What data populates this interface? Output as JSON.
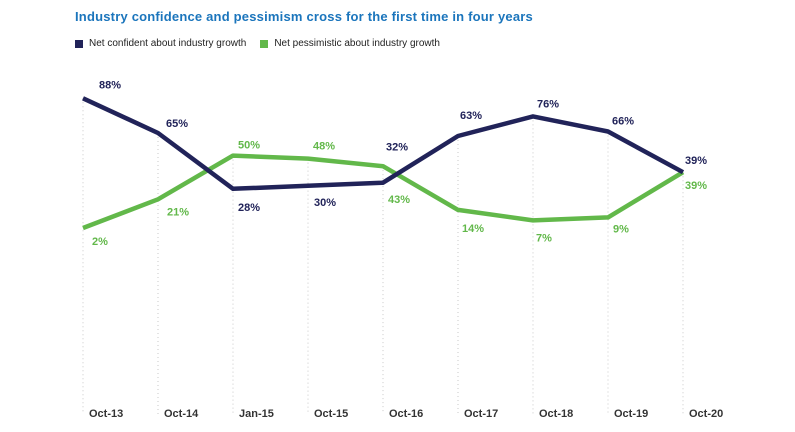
{
  "chart_data": {
    "type": "line",
    "title": "Industry confidence and pessimism cross for the first time in four years",
    "categories": [
      "Oct-13",
      "Oct-14",
      "Jan-15",
      "Oct-15",
      "Oct-16",
      "Oct-17",
      "Oct-18",
      "Oct-19",
      "Oct-20"
    ],
    "series": [
      {
        "name": "Net confident about industry growth",
        "color": "#212359",
        "values": [
          88,
          65,
          28,
          30,
          32,
          63,
          76,
          66,
          39
        ],
        "labels": [
          "88%",
          "65%",
          "28%",
          "30%",
          "32%",
          "63%",
          "76%",
          "66%",
          "39%"
        ],
        "label_dx": [
          16,
          8,
          5,
          6,
          3,
          2,
          4,
          4,
          2
        ],
        "label_dy": [
          -10,
          -6,
          22,
          20,
          -32,
          -17,
          -9,
          -7,
          -8
        ]
      },
      {
        "name": "Net pessimistic about industry growth",
        "color": "#62b84a",
        "values": [
          2,
          21,
          50,
          48,
          43,
          14,
          7,
          9,
          39
        ],
        "labels": [
          "2%",
          "21%",
          "50%",
          "48%",
          "43%",
          "14%",
          "7%",
          "9%",
          "39%"
        ],
        "label_dx": [
          9,
          9,
          5,
          5,
          5,
          4,
          3,
          5,
          2
        ],
        "label_dy": [
          17,
          16,
          -7,
          -9,
          37,
          22,
          21,
          15,
          17
        ]
      }
    ],
    "ylim": [
      0,
      100
    ],
    "y_axis_visible": false,
    "gridlines": "dotted vertical drop lines from upper data point to category label",
    "legend_position": "top-left",
    "colors": {
      "title": "#1b75bc",
      "axis_labels": "#333333",
      "gridline": "#c9c9c9",
      "background": "#ffffff"
    }
  }
}
